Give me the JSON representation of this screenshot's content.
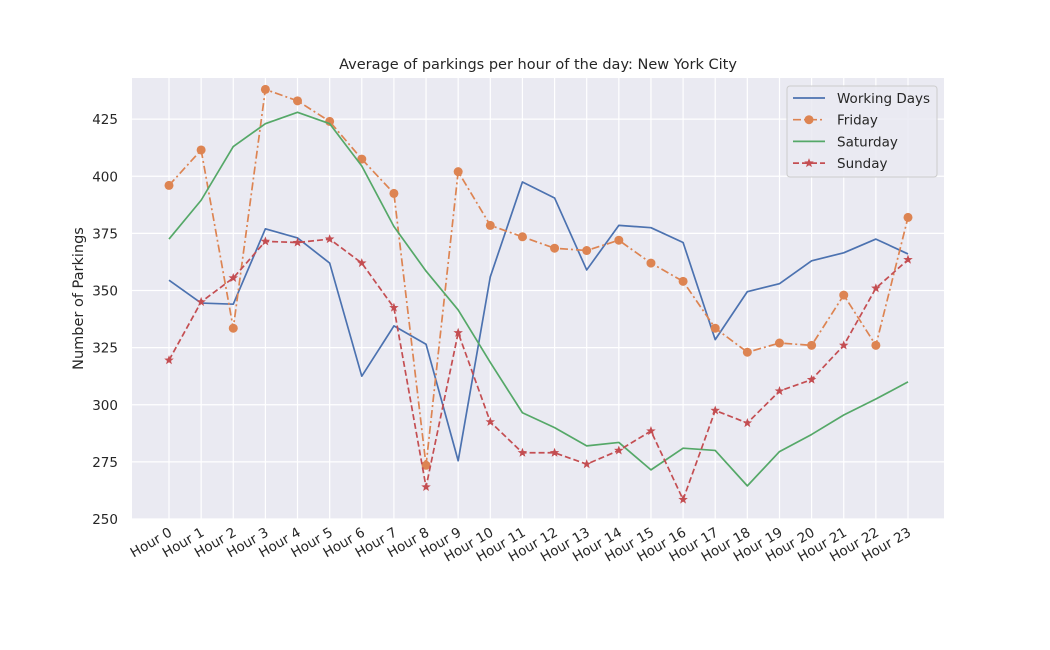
{
  "chart_data": {
    "type": "line",
    "title": "Average of parkings per hour of the day: New York City",
    "xlabel": "",
    "ylabel": "Number of Parkings",
    "ylim": [
      250,
      443
    ],
    "yticks": [
      250,
      275,
      300,
      325,
      350,
      375,
      400,
      425
    ],
    "grid": true,
    "legend_position": "top-right",
    "categories": [
      "Hour 0",
      "Hour 1",
      "Hour 2",
      "Hour 3",
      "Hour 4",
      "Hour 5",
      "Hour 6",
      "Hour 7",
      "Hour 8",
      "Hour 9",
      "Hour 10",
      "Hour 11",
      "Hour 12",
      "Hour 13",
      "Hour 14",
      "Hour 15",
      "Hour 16",
      "Hour 17",
      "Hour 18",
      "Hour 19",
      "Hour 20",
      "Hour 21",
      "Hour 22",
      "Hour 23"
    ],
    "series": [
      {
        "name": "Working Days",
        "color": "#4c72b0",
        "dash": "",
        "marker": "none",
        "values": [
          354.5,
          344.5,
          344,
          377,
          373,
          362,
          312.5,
          334.5,
          326.5,
          275.5,
          356,
          397.5,
          390.5,
          359,
          378.5,
          377.5,
          371,
          328.5,
          349.5,
          353,
          363,
          366.5,
          372.5,
          366
        ]
      },
      {
        "name": "Friday",
        "color": "#dd8452",
        "dash": "8,3,2,3",
        "marker": "circle",
        "values": [
          396,
          411.5,
          333.5,
          438,
          433,
          424,
          407.5,
          392.5,
          273.5,
          402,
          378.5,
          373.5,
          368.5,
          367.5,
          372,
          362,
          354,
          333.5,
          323,
          327,
          326,
          348,
          326,
          382
        ]
      },
      {
        "name": "Saturday",
        "color": "#55a868",
        "dash": "",
        "marker": "none",
        "values": [
          372.5,
          389.5,
          413,
          423,
          428,
          423,
          404.5,
          378,
          358.5,
          341.5,
          318.5,
          296.5,
          290,
          282,
          283.5,
          271.5,
          281,
          280,
          264.5,
          279.5,
          287,
          295.5,
          302.5,
          310
        ]
      },
      {
        "name": "Sunday",
        "color": "#c44e52",
        "dash": "6,3",
        "marker": "star",
        "values": [
          319.5,
          345,
          355.5,
          371.5,
          371,
          372.5,
          362,
          342.5,
          264,
          331.5,
          292.5,
          279,
          279,
          274,
          280,
          288.5,
          258.5,
          297.5,
          292,
          306,
          311,
          326,
          351,
          363.5
        ]
      }
    ]
  }
}
